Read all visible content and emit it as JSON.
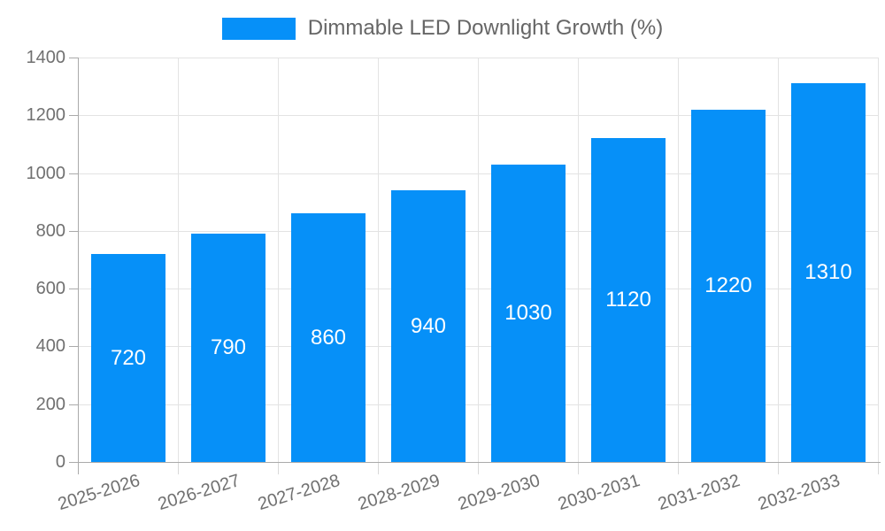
{
  "legend": {
    "label": "Dimmable LED Downlight Growth (%)",
    "swatch_color": "#0690f8"
  },
  "chart_data": {
    "type": "bar",
    "title": "Dimmable LED Downlight Growth (%)",
    "categories": [
      "2025-2026",
      "2026-2027",
      "2027-2028",
      "2028-2029",
      "2029-2030",
      "2030-2031",
      "2031-2032",
      "2032-2033"
    ],
    "values": [
      720,
      790,
      860,
      940,
      1030,
      1120,
      1220,
      1310
    ],
    "value_labels": [
      "720",
      "790",
      "860",
      "940",
      "1030",
      "1120",
      "1220",
      "1310"
    ],
    "xlabel": "",
    "ylabel": "",
    "ylim": [
      0,
      1400
    ],
    "yticks": [
      0,
      200,
      400,
      600,
      800,
      1000,
      1200,
      1400
    ],
    "grid": true,
    "legend_position": "top",
    "bar_color": "#0690f8",
    "value_label_color": "#ffffff",
    "tick_label_color": "#707070",
    "gridline_color": "#e3e3e3",
    "axis_color": "#aaaaaa"
  }
}
